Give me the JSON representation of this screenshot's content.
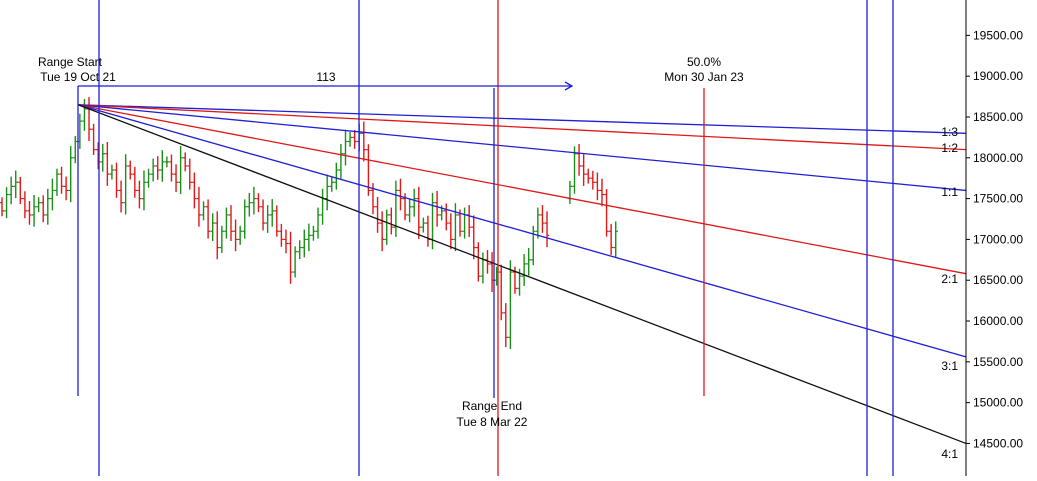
{
  "chart_data": {
    "type": "line",
    "y_axis": {
      "side": "right",
      "ticks": [
        "14500.00",
        "15000.00",
        "15500.00",
        "16000.00",
        "16500.00",
        "17000.00",
        "17500.00",
        "18000.00",
        "18500.00",
        "19000.00",
        "19500.00"
      ],
      "tick_values": [
        14500,
        15000,
        15500,
        16000,
        16500,
        17000,
        17500,
        18000,
        18500,
        19000,
        19500
      ],
      "ylim": [
        14150,
        19860
      ]
    },
    "grid": false,
    "annotations": {
      "range_start": {
        "title": "Range Start",
        "date": "Tue 19 Oct 21"
      },
      "range_end": {
        "title": "Range End",
        "date": "Tue 8 Mar 22"
      },
      "bar_count": "113",
      "midpoint": {
        "title": "50.0%",
        "date": "Mon 30 Jan 23"
      }
    },
    "fan_lines": [
      {
        "label": "1:3",
        "color": "#1f1fd6",
        "start_price": 18650,
        "end_price": 18300
      },
      {
        "label": "1:2",
        "color": "#e01818",
        "start_price": 18650,
        "end_price": 18100
      },
      {
        "label": "1:1",
        "color": "#1f1fd6",
        "start_price": 18650,
        "end_price": 17600
      },
      {
        "label": "2:1",
        "color": "#e01818",
        "start_price": 18650,
        "end_price": 16580
      },
      {
        "label": "3:1",
        "color": "#1f1fd6",
        "start_price": 18650,
        "end_price": 15560
      },
      {
        "label": "4:1",
        "color": "#111111",
        "start_price": 18650,
        "end_price": 14500
      }
    ],
    "ohlc_series": {
      "up_color": "#1a8f1a",
      "down_color": "#e01818",
      "closes": [
        17350,
        17550,
        17650,
        17700,
        17500,
        17350,
        17300,
        17400,
        17450,
        17300,
        17500,
        17600,
        17800,
        17650,
        17600,
        18000,
        18200,
        18450,
        18600,
        18350,
        18100,
        17950,
        18050,
        17800,
        17850,
        17600,
        17450,
        17900,
        17800,
        17600,
        17500,
        17700,
        17800,
        17900,
        17850,
        17950,
        17950,
        17800,
        17700,
        18000,
        17900,
        17700,
        17500,
        17300,
        17400,
        17100,
        17200,
        16900,
        17100,
        17300,
        17100,
        17000,
        17100,
        17400,
        17450,
        17500,
        17400,
        17200,
        17300,
        17350,
        17100,
        17000,
        16950,
        16600,
        16850,
        16900,
        17000,
        17050,
        17100,
        17300,
        17500,
        17650,
        17700,
        17850,
        18050,
        18200,
        18250,
        18200,
        18300,
        18100,
        17600,
        17400,
        17200,
        17000,
        17300,
        17150,
        17600,
        17500,
        17300,
        17400,
        17500,
        17150,
        17200,
        17000,
        17450,
        17300,
        17350,
        17200,
        17000,
        17300,
        17100,
        17300,
        17150,
        16900,
        16550,
        16750,
        16700,
        16500,
        16600,
        16100,
        15800,
        16600,
        16400,
        16550,
        16700,
        16750,
        17100,
        17300,
        17200,
        17050,
        17350,
        17450,
        17400,
        17500,
        17650,
        18050,
        17900,
        17800,
        17750,
        17700,
        17600,
        17550,
        17100,
        16900,
        17100
      ],
      "start_price": 17450,
      "volatility": [
        110,
        150,
        200,
        240
      ],
      "gaps": [
        [
          120,
          123
        ]
      ]
    }
  }
}
